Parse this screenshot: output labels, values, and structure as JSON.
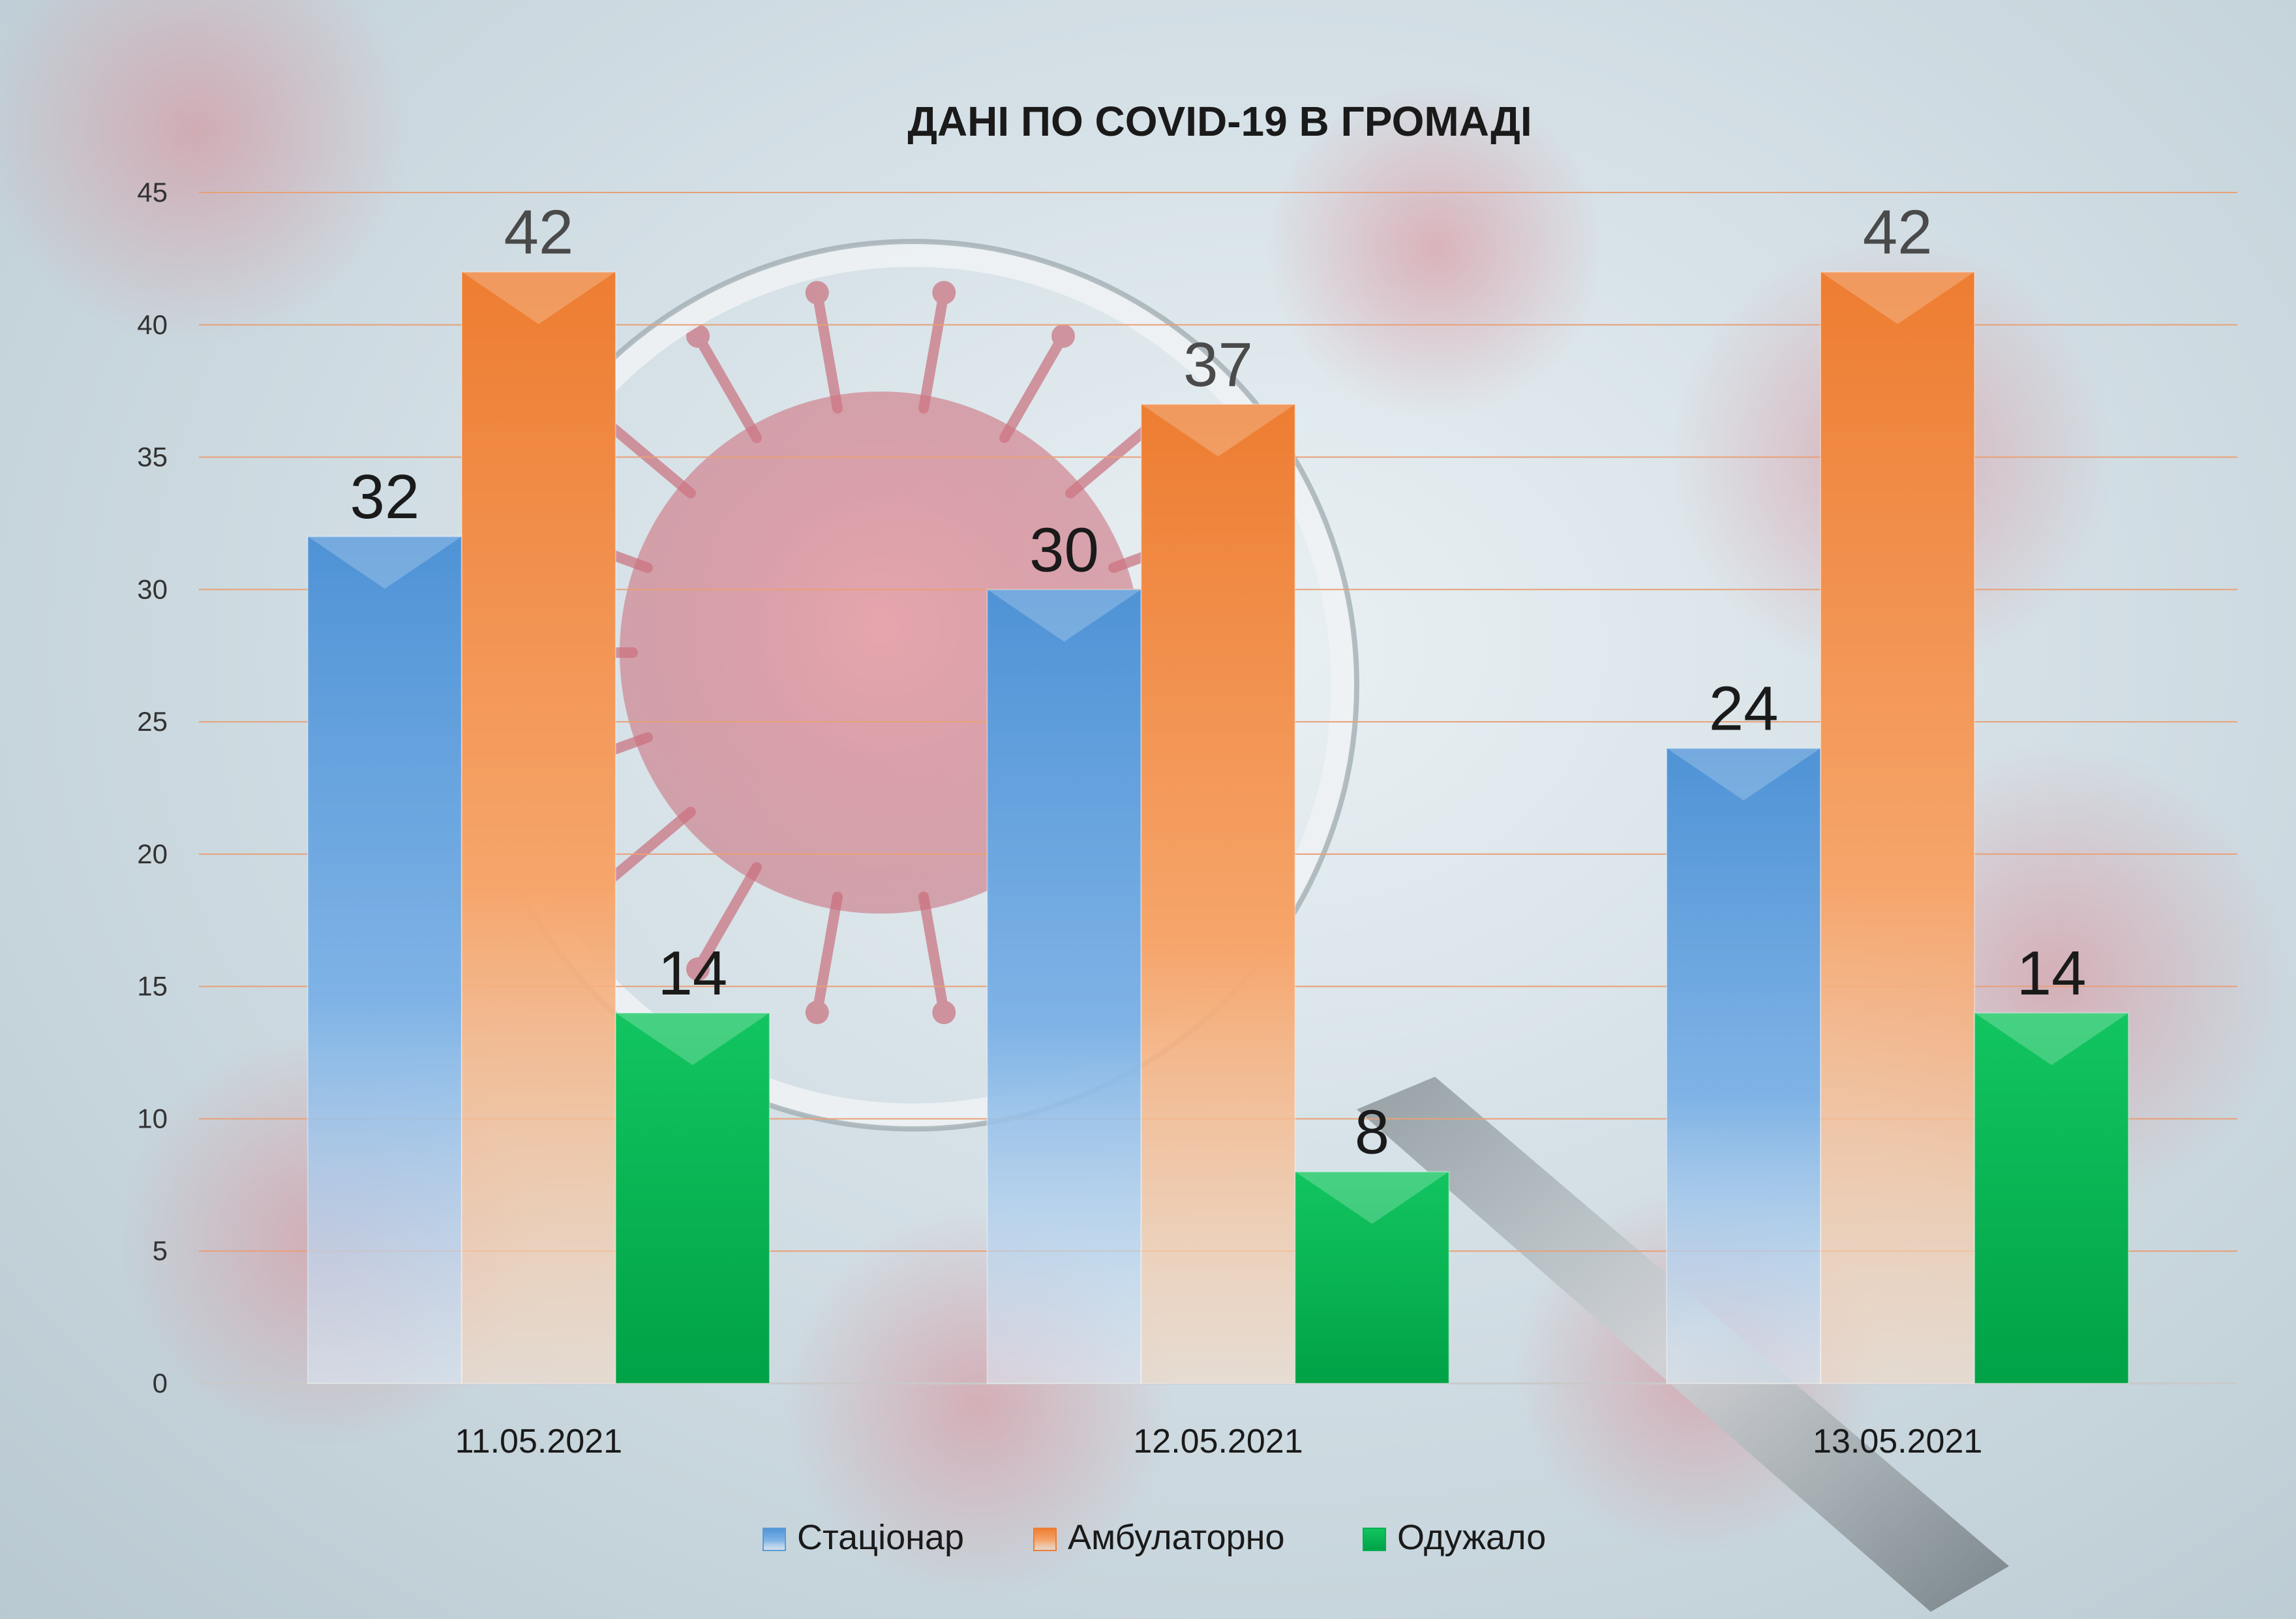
{
  "chart_data": {
    "type": "bar",
    "title": "ДАНІ ПО COVID-19 В ГРОМАДІ",
    "categories": [
      "11.05.2021",
      "12.05.2021",
      "13.05.2021"
    ],
    "series": [
      {
        "name": "Стаціонар",
        "values": [
          32,
          30,
          24
        ],
        "color": "#5b9bd5",
        "label_color": "#1a1a1a"
      },
      {
        "name": "Амбулаторно",
        "values": [
          42,
          37,
          42
        ],
        "color": "#ed7d31",
        "label_color": "#4a4a4a"
      },
      {
        "name": "Одужало",
        "values": [
          14,
          8,
          14
        ],
        "color": "#00b050",
        "label_color": "#1a1a1a"
      }
    ],
    "ylim": [
      0,
      45
    ],
    "yticks": [
      0,
      5,
      10,
      15,
      20,
      25,
      30,
      35,
      40,
      45
    ],
    "grid": true,
    "legend": "bottom",
    "gridline_color": "#e8a078"
  }
}
